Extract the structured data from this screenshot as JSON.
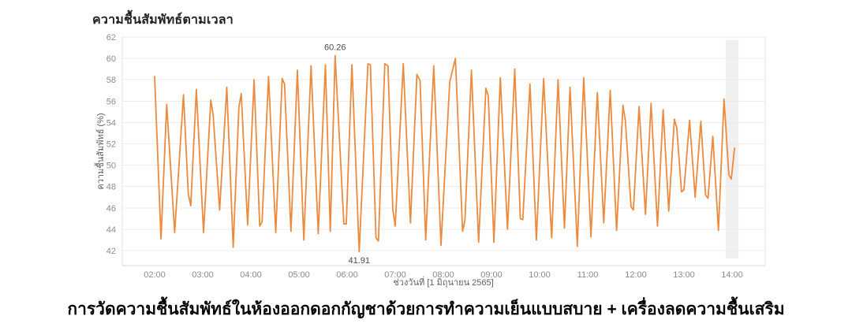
{
  "title": "ความชื้นสัมพัทธ์ตามเวลา",
  "caption": "การวัดความชื้นสัมพัทธ์ในห้องออกดอกกัญชาด้วยการทำความเย็นแบบสบาย + เครื่องลดความชื้นเสริม",
  "colors": {
    "line": "#EC8A3D",
    "grid": "#ededed",
    "plot_border": "#e3e3e3",
    "axis_line": "#d9d9d9",
    "highlight_band": "#e4e4e4",
    "tick_text": "#8c8c8c",
    "title_text": "#212121"
  },
  "chart_data": {
    "type": "line",
    "title": "ความชื้นสัมพัทธ์ตามเวลา",
    "xlabel": "ช่วงวันที่ [1 มิถุนายน 2565]",
    "ylabel": "ความชื้นสัมพัทธ์ (%)",
    "ylim": [
      40.6,
      62
    ],
    "y_ticks": [
      62,
      60,
      58,
      56,
      54,
      52,
      50,
      48,
      46,
      44,
      42
    ],
    "x_ticks": [
      "02:00",
      "03:00",
      "04:00",
      "05:00",
      "06:00",
      "07:00",
      "08:00",
      "09:00",
      "10:00",
      "11:00",
      "12:00",
      "13:00",
      "14:00"
    ],
    "grid": "horizontal-only",
    "legend": "none",
    "annotations": [
      {
        "label": "60.26",
        "time": "05:45",
        "value": 60.26,
        "placement": "above"
      },
      {
        "label": "41.91",
        "time": "06:15",
        "value": 41.91,
        "placement": "below"
      }
    ],
    "highlight_band": {
      "center_time": "14:00",
      "width_minutes": 16
    },
    "series": [
      {
        "name": "relative-humidity",
        "points": [
          [
            "02:00",
            58.3
          ],
          [
            "02:08",
            43.1
          ],
          [
            "02:15",
            55.7
          ],
          [
            "02:25",
            43.7
          ],
          [
            "02:36",
            56.6
          ],
          [
            "02:42",
            47.3
          ],
          [
            "02:45",
            46.2
          ],
          [
            "02:52",
            57.1
          ],
          [
            "03:01",
            43.7
          ],
          [
            "03:10",
            56.1
          ],
          [
            "03:13",
            54.7
          ],
          [
            "03:21",
            45.8
          ],
          [
            "03:30",
            57.3
          ],
          [
            "03:38",
            42.3
          ],
          [
            "03:45",
            55.4
          ],
          [
            "03:48",
            56.7
          ],
          [
            "03:56",
            44.4
          ],
          [
            "04:04",
            58.0
          ],
          [
            "04:11",
            44.3
          ],
          [
            "04:14",
            44.7
          ],
          [
            "04:22",
            58.3
          ],
          [
            "04:31",
            43.7
          ],
          [
            "04:39",
            58.1
          ],
          [
            "04:42",
            57.6
          ],
          [
            "04:50",
            43.8
          ],
          [
            "04:58",
            58.9
          ],
          [
            "05:06",
            43.0
          ],
          [
            "05:15",
            59.3
          ],
          [
            "05:24",
            43.6
          ],
          [
            "05:33",
            59.4
          ],
          [
            "05:39",
            43.8
          ],
          [
            "05:45",
            60.26
          ],
          [
            "05:56",
            44.5
          ],
          [
            "05:59",
            44.5
          ],
          [
            "06:06",
            59.4
          ],
          [
            "06:15",
            41.91
          ],
          [
            "06:26",
            59.5
          ],
          [
            "06:29",
            59.4
          ],
          [
            "06:36",
            43.2
          ],
          [
            "06:39",
            42.9
          ],
          [
            "06:47",
            59.5
          ],
          [
            "06:51",
            59.3
          ],
          [
            "06:57",
            45.9
          ],
          [
            "07:00",
            44.3
          ],
          [
            "07:10",
            59.5
          ],
          [
            "07:19",
            44.6
          ],
          [
            "07:27",
            58.5
          ],
          [
            "07:31",
            57.9
          ],
          [
            "07:38",
            43.0
          ],
          [
            "07:48",
            59.3
          ],
          [
            "07:57",
            42.5
          ],
          [
            "08:08",
            57.8
          ],
          [
            "08:15",
            60.0
          ],
          [
            "08:24",
            43.8
          ],
          [
            "08:27",
            44.9
          ],
          [
            "08:35",
            58.9
          ],
          [
            "08:44",
            42.8
          ],
          [
            "08:53",
            57.2
          ],
          [
            "08:56",
            56.5
          ],
          [
            "09:03",
            42.8
          ],
          [
            "09:11",
            58.2
          ],
          [
            "09:20",
            44.0
          ],
          [
            "09:29",
            59.0
          ],
          [
            "09:36",
            45.0
          ],
          [
            "09:39",
            44.9
          ],
          [
            "09:48",
            57.6
          ],
          [
            "09:56",
            43.0
          ],
          [
            "10:05",
            58.1
          ],
          [
            "10:12",
            47.5
          ],
          [
            "10:15",
            43.2
          ],
          [
            "10:23",
            58.0
          ],
          [
            "10:31",
            44.1
          ],
          [
            "10:38",
            57.3
          ],
          [
            "10:47",
            42.4
          ],
          [
            "10:55",
            58.2
          ],
          [
            "11:04",
            43.3
          ],
          [
            "11:12",
            56.8
          ],
          [
            "11:20",
            44.6
          ],
          [
            "11:28",
            57.0
          ],
          [
            "11:36",
            43.9
          ],
          [
            "11:44",
            55.6
          ],
          [
            "11:47",
            54.1
          ],
          [
            "11:54",
            46.1
          ],
          [
            "11:57",
            45.8
          ],
          [
            "12:04",
            55.5
          ],
          [
            "12:12",
            45.4
          ],
          [
            "12:19",
            55.8
          ],
          [
            "12:27",
            44.3
          ],
          [
            "12:34",
            55.2
          ],
          [
            "12:41",
            45.7
          ],
          [
            "12:48",
            54.3
          ],
          [
            "12:51",
            53.5
          ],
          [
            "12:57",
            47.5
          ],
          [
            "13:00",
            47.7
          ],
          [
            "13:07",
            54.2
          ],
          [
            "13:14",
            47.0
          ],
          [
            "13:21",
            54.1
          ],
          [
            "13:27",
            47.2
          ],
          [
            "13:30",
            46.9
          ],
          [
            "13:36",
            52.7
          ],
          [
            "13:43",
            43.9
          ],
          [
            "13:50",
            56.2
          ],
          [
            "13:56",
            49.1
          ],
          [
            "13:59",
            48.7
          ],
          [
            "14:03",
            51.6
          ]
        ]
      }
    ]
  }
}
